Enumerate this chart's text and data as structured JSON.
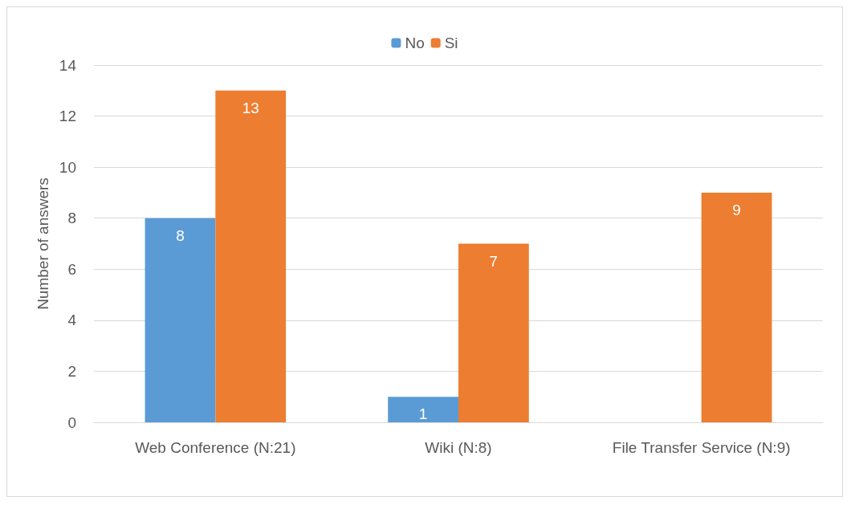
{
  "chart_data": {
    "type": "bar",
    "ylabel": "Number of answers",
    "categories": [
      "Web Conference (N:21)",
      "Wiki (N:8)",
      "File Transfer Service (N:9)"
    ],
    "series": [
      {
        "name": "No",
        "color": "#5b9bd5",
        "values": [
          8,
          1,
          null
        ]
      },
      {
        "name": "Si",
        "color": "#ed7d31",
        "values": [
          13,
          7,
          9
        ]
      }
    ],
    "ylim": [
      0,
      14
    ],
    "yticks": [
      0,
      2,
      4,
      6,
      8,
      10,
      12,
      14
    ],
    "grid": "y",
    "legend": "top",
    "data_labels": true
  }
}
